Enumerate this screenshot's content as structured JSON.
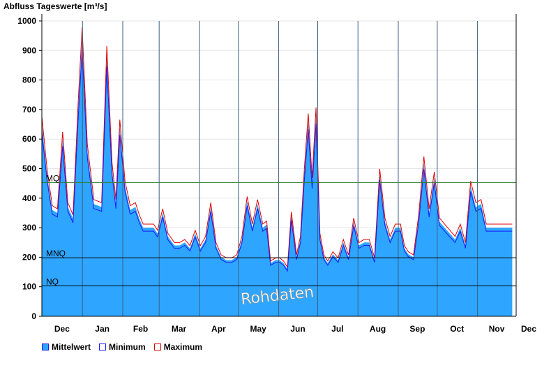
{
  "chart_data": {
    "type": "area",
    "title": "Abfluss Tageswerte [m³/s]",
    "ylim": [
      0,
      1000
    ],
    "yticks": [
      0,
      100,
      200,
      300,
      400,
      500,
      600,
      700,
      800,
      900,
      1000
    ],
    "months": [
      "Dec",
      "Jan",
      "Feb",
      "Mar",
      "Apr",
      "May",
      "Jun",
      "Jul",
      "Aug",
      "Sep",
      "Oct",
      "Nov",
      "Dec"
    ],
    "reference_lines": [
      {
        "label": "MQ",
        "value": 453,
        "color": "#2e7d32"
      },
      {
        "label": "MNQ",
        "value": 198,
        "color": "#000000"
      },
      {
        "label": "NQ",
        "value": 103,
        "color": "#000000"
      }
    ],
    "watermark": "Rohdaten",
    "x_days": [
      0,
      4,
      8,
      12,
      16,
      20,
      24,
      28,
      31,
      35,
      40,
      46,
      50,
      54,
      57,
      60,
      64,
      68,
      72,
      75,
      78,
      82,
      86,
      89,
      93,
      97,
      102,
      106,
      110,
      114,
      118,
      122,
      126,
      130,
      134,
      138,
      142,
      146,
      150,
      154,
      158,
      162,
      166,
      170,
      173,
      176,
      180,
      183,
      186,
      189,
      192,
      196,
      199,
      202,
      205,
      208,
      211,
      214,
      217,
      220,
      224,
      228,
      232,
      236,
      240,
      244,
      248,
      252,
      256,
      260,
      264,
      268,
      272,
      276,
      279,
      282,
      286,
      290,
      294,
      298,
      302,
      306,
      310,
      314,
      318,
      322,
      326,
      330,
      334,
      338,
      342,
      346,
      350,
      354,
      358,
      362
    ],
    "series": [
      {
        "name": "Mittelwert",
        "color": "#2ea6ff",
        "values": [
          650,
          480,
          360,
          350,
          600,
          370,
          330,
          700,
          940,
          560,
          380,
          370,
          880,
          500,
          380,
          640,
          440,
          360,
          370,
          330,
          300,
          300,
          300,
          280,
          350,
          270,
          240,
          240,
          250,
          230,
          280,
          230,
          260,
          370,
          240,
          200,
          190,
          190,
          200,
          260,
          390,
          300,
          380,
          300,
          310,
          180,
          190,
          190,
          180,
          160,
          340,
          200,
          260,
          480,
          660,
          450,
          680,
          270,
          200,
          180,
          210,
          190,
          250,
          200,
          320,
          240,
          250,
          250,
          190,
          480,
          320,
          260,
          300,
          300,
          230,
          210,
          200,
          330,
          520,
          350,
          470,
          320,
          300,
          280,
          260,
          300,
          240,
          440,
          370,
          380,
          300,
          300,
          300,
          300,
          300,
          300
        ]
      },
      {
        "name": "Minimum",
        "color": "#1a1aff"
      },
      {
        "name": "Maximum",
        "color": "#e00000"
      }
    ]
  },
  "legend": {
    "mean_label": "Mittelwert",
    "min_label": "Minimum",
    "max_label": "Maximum"
  }
}
